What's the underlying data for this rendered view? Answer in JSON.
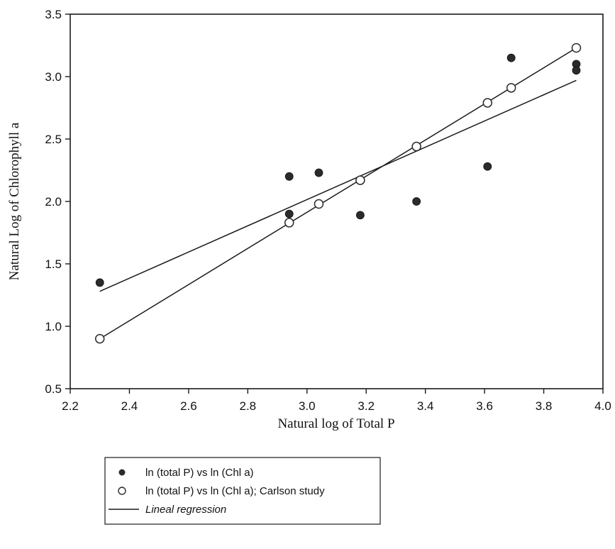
{
  "chart_data": {
    "type": "scatter",
    "xlabel": "Natural log of Total P",
    "ylabel": "Natural Log of Chlorophyll a",
    "xlim": [
      2.2,
      4.0
    ],
    "ylim": [
      0.5,
      3.5
    ],
    "x_ticks": [
      "2.2",
      "2.4",
      "2.6",
      "2.8",
      "3.0",
      "3.2",
      "3.4",
      "3.6",
      "3.8",
      "4.0"
    ],
    "y_ticks": [
      "0.5",
      "1.0",
      "1.5",
      "2.0",
      "2.5",
      "3.0",
      "3.5"
    ],
    "grid": false,
    "legend_position": "bottom-left",
    "series": [
      {
        "name": "ln (total P) vs ln (Chl a)",
        "marker": "filled-circle",
        "color": "#2b2b2b",
        "points": [
          [
            2.3,
            1.35
          ],
          [
            2.94,
            2.2
          ],
          [
            2.94,
            1.9
          ],
          [
            3.04,
            2.23
          ],
          [
            3.18,
            1.89
          ],
          [
            3.37,
            2.0
          ],
          [
            3.61,
            2.28
          ],
          [
            3.69,
            3.15
          ],
          [
            3.91,
            3.1
          ],
          [
            3.91,
            3.05
          ]
        ]
      },
      {
        "name": "ln (total P) vs ln (Chl a); Carlson study",
        "marker": "open-circle",
        "color": "#2b2b2b",
        "points": [
          [
            2.3,
            0.9
          ],
          [
            2.94,
            1.83
          ],
          [
            3.04,
            1.98
          ],
          [
            3.18,
            2.17
          ],
          [
            3.37,
            2.44
          ],
          [
            3.61,
            2.79
          ],
          [
            3.69,
            2.91
          ],
          [
            3.91,
            3.23
          ]
        ]
      }
    ],
    "regression_lines": [
      {
        "series": "ln (total P) vs ln (Chl a)",
        "x": [
          2.3,
          3.91
        ],
        "y": [
          1.28,
          2.97
        ]
      },
      {
        "series": "ln (total P) vs ln (Chl a); Carlson study",
        "x": [
          2.3,
          3.91
        ],
        "y": [
          0.9,
          3.23
        ]
      }
    ],
    "legend": [
      {
        "marker": "filled-circle",
        "label": "ln (total P) vs ln (Chl a)"
      },
      {
        "marker": "open-circle",
        "label": "ln (total P) vs ln (Chl a); Carlson study"
      },
      {
        "marker": "line",
        "label": "Lineal regression"
      }
    ]
  }
}
